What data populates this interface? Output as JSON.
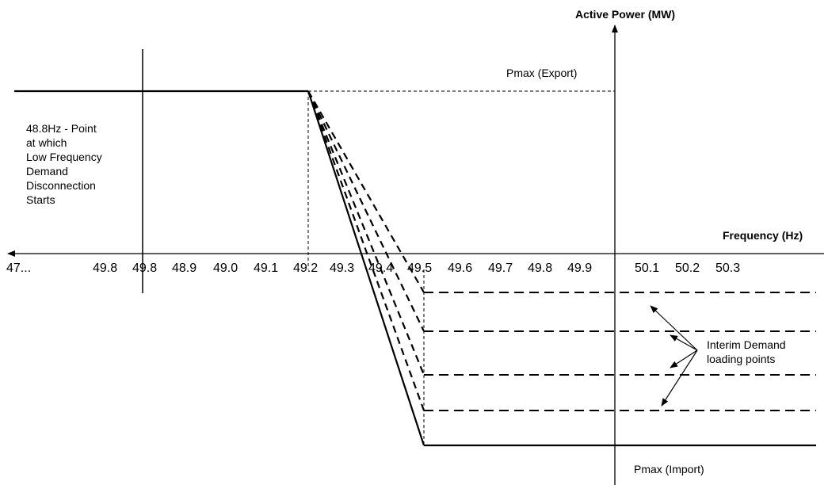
{
  "axes": {
    "y_title": "Active Power (MW)",
    "x_title": "Frequency (Hz)"
  },
  "x_ticks": [
    "47...",
    "49.8",
    "49.8",
    "48.9",
    "49.0",
    "49.1",
    "49.2",
    "49.3",
    "49.4",
    "49.5",
    "49.6",
    "49.7",
    "49.8",
    "49.9",
    "50.1",
    "50.2",
    "50.3"
  ],
  "labels": {
    "pmax_export": "Pmax (Export)",
    "pmax_import": "Pmax (Import)",
    "lfdd_note": [
      "48.8Hz - Point",
      "at which",
      "Low Frequency",
      "Demand",
      "Disconnection",
      "Starts"
    ],
    "interim_note": [
      "Interim Demand",
      "loading points"
    ]
  },
  "colors": {
    "ink": "#000000",
    "background": "#ffffff"
  }
}
